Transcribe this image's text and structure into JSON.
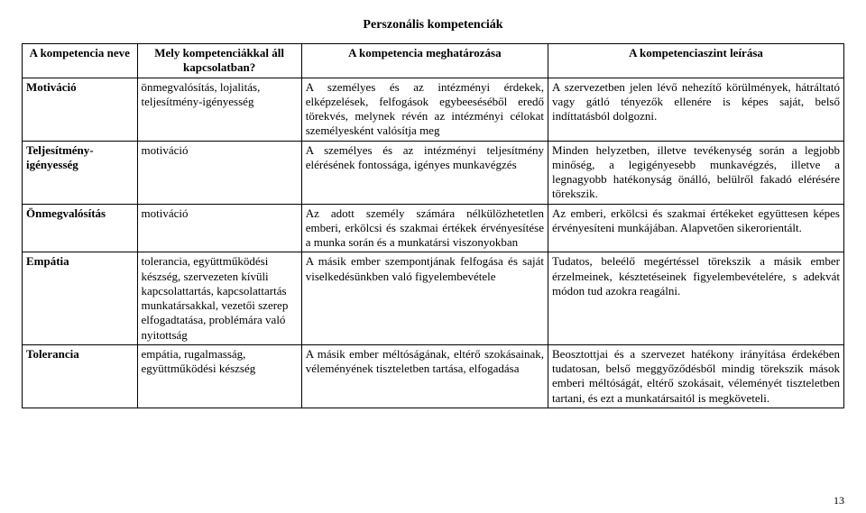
{
  "title": "Perszonális kompetenciák",
  "header": {
    "c1": "A kompetencia neve",
    "c2": "Mely kompetenciákkal áll kapcsolatban?",
    "c3": "A kompetencia meghatározása",
    "c4": "A kompetenciaszint leírása"
  },
  "rows": [
    {
      "name": "Motiváció",
      "related": "önmegvalósítás, lojalitás, teljesítmény-igényesség",
      "def": "A személyes és az intézményi érdekek, elképzelések, felfogások egybeeséséből eredő törekvés, melynek révén az intézményi célokat személyesként valósítja meg",
      "level": "A szervezetben jelen lévő nehezítő körülmények, hátráltató vagy gátló tényezők ellenére is képes saját, belső indíttatásból dolgozni."
    },
    {
      "name": "Teljesítmény-igényesség",
      "related": "motiváció",
      "def": "A személyes és az intézményi teljesítmény elérésének fontossága, igényes munkavégzés",
      "level": "Minden helyzetben, illetve tevékenység során a legjobb minőség, a legigényesebb munkavégzés, illetve a legnagyobb hatékonyság önálló, belülről fakadó elérésére törekszik."
    },
    {
      "name": "Önmegvalósítás",
      "related": "motiváció",
      "def": "Az adott személy számára nélkülözhetetlen emberi, erkölcsi és szakmai értékek érvényesítése a munka során és a munkatársi viszonyokban",
      "level": "Az emberi, erkölcsi és szakmai értékeket együttesen képes érvényesíteni munkájában. Alapvetően sikerorientált."
    },
    {
      "name": "Empátia",
      "related": "tolerancia, együttműködési készség, szervezeten kívüli kapcsolattartás, kapcsolattartás munkatársakkal, vezetői szerep elfogadtatása, problémára való nyitottság",
      "def": "A másik ember szempontjának felfogása és saját viselkedésünkben való figyelembevétele",
      "level": "Tudatos, beleélő megértéssel törekszik a másik ember érzelmeinek, késztetéseinek figyelembevételére, s adekvát módon tud azokra reagálni."
    },
    {
      "name": "Tolerancia",
      "related": "empátia, rugalmasság, együttműködési készség",
      "def": "A másik ember méltóságának, eltérő szokásainak, véleményének tiszteletben tartása, elfogadása",
      "level": "Beosztottjai és a szervezet hatékony irányítása érdekében tudatosan, belső meggyőződésből mindig törekszik mások emberi méltóságát, eltérő szokásait, véleményét tiszteletben tartani, és ezt a munkatársaitól is megköveteli."
    }
  ],
  "page_number": "13"
}
